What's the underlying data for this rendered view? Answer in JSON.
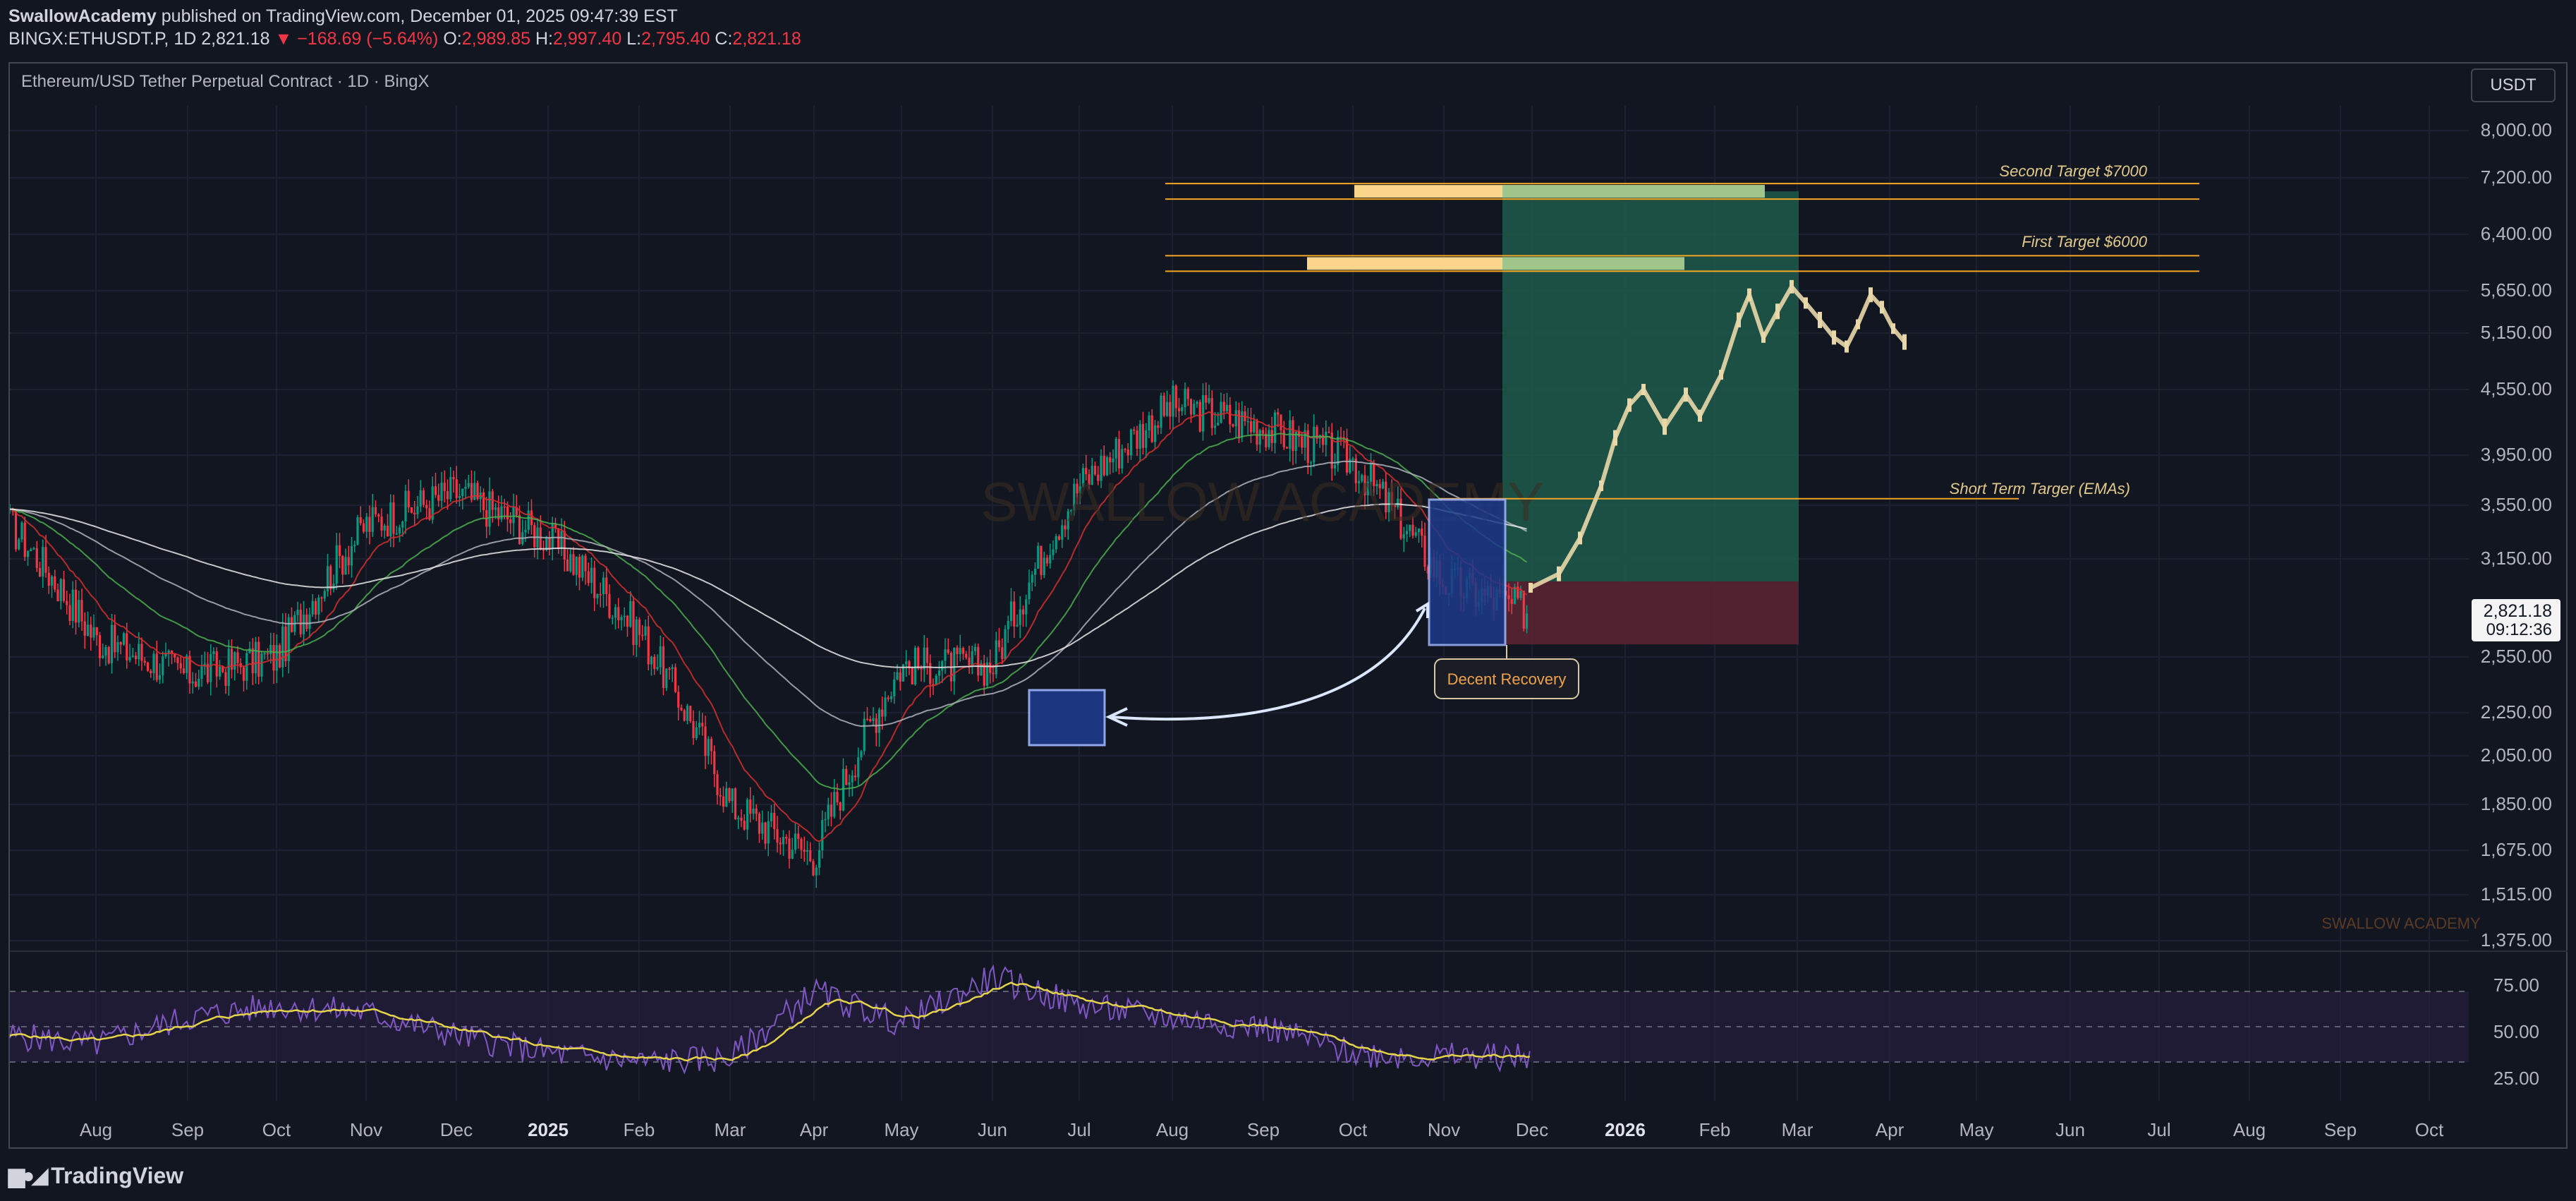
{
  "header": {
    "author": "SwallowAcademy",
    "published_text": "published on TradingView.com, December 01, 2025 09:47:39 EST",
    "symbol": "BINGX:ETHUSDT.P, 1D",
    "last": "2,821.18",
    "change": "▼ −168.69 (−5.64%)",
    "o_label": "O:",
    "o": "2,989.85",
    "h_label": "H:",
    "h": "2,997.40",
    "l_label": "L:",
    "l": "2,795.40",
    "c_label": "C:",
    "c": "2,821.18"
  },
  "chart_title": "Ethereum/USD Tether Perpetual Contract · 1D · BingX",
  "currency_button": "USDT",
  "price_axis": [
    "8,000.00",
    "7,200.00",
    "6,400.00",
    "5,650.00",
    "5,150.00",
    "4,550.00",
    "3,950.00",
    "3,550.00",
    "3,150.00",
    "2,550.00",
    "2,250.00",
    "2,050.00",
    "1,850.00",
    "1,675.00",
    "1,515.00",
    "1,375.00"
  ],
  "current_price_label": "2,821.18",
  "countdown_label": "09:12:36",
  "rsi_axis": [
    "75.00",
    "50.00",
    "25.00"
  ],
  "time_axis": [
    "Aug",
    "Sep",
    "Oct",
    "Nov",
    "Dec",
    "2025",
    "Feb",
    "Mar",
    "Apr",
    "May",
    "Jun",
    "Jul",
    "Aug",
    "Sep",
    "Oct",
    "Nov",
    "Dec",
    "2026",
    "Feb",
    "Mar",
    "Apr",
    "May",
    "Jun",
    "Jul",
    "Aug",
    "Sep",
    "Oct"
  ],
  "annotations": {
    "second_target": "Second Target $7000",
    "first_target": "First Target $6000",
    "short_term": "Short Term Targer (EMAs)",
    "recovery": "Decent Recovery",
    "watermark": "SWALLOW ACADEMY",
    "watermark_small": "SWALLOW ACADEMY"
  },
  "footer": {
    "brand": "TradingView"
  },
  "colors": {
    "up": "#089981",
    "down": "#f23645",
    "target": "#f5a623",
    "projection": "#e8d7a8",
    "rsi": "#7e57c2",
    "rsi_ma": "#e5d34a",
    "ema_fast": "#d32f2f",
    "ema_mid": "#4caf50",
    "long_zone": "#1e5a4c",
    "stop_zone": "#5a2432",
    "highlight_box": "#1e3a8a"
  },
  "chart_data": {
    "type": "candlestick",
    "symbol": "ETHUSDT.P",
    "interval": "1D",
    "y_scale": "log",
    "ylim": [
      1375,
      8000
    ],
    "x": [
      "2024-08",
      "2024-09",
      "2024-10",
      "2024-11",
      "2024-12",
      "2025-01",
      "2025-02",
      "2025-03",
      "2025-04",
      "2025-05",
      "2025-06",
      "2025-07",
      "2025-08",
      "2025-09",
      "2025-10",
      "2025-11",
      "2025-12"
    ],
    "close_approx": [
      2650,
      2450,
      2550,
      3400,
      3650,
      3300,
      2700,
      1850,
      1650,
      2500,
      2500,
      3700,
      4400,
      4200,
      3900,
      3000,
      2821
    ],
    "levels": [
      {
        "name": "Second Target",
        "price": 7000
      },
      {
        "name": "First Target",
        "price": 6000
      },
      {
        "name": "Short Term Targer (EMAs)",
        "price": 3600
      }
    ],
    "rsi": {
      "levels": [
        70,
        50,
        30
      ],
      "values_approx": [
        45,
        40,
        55,
        62,
        58,
        45,
        35,
        30,
        32,
        70,
        52,
        78,
        62,
        55,
        50,
        35,
        33
      ]
    }
  }
}
